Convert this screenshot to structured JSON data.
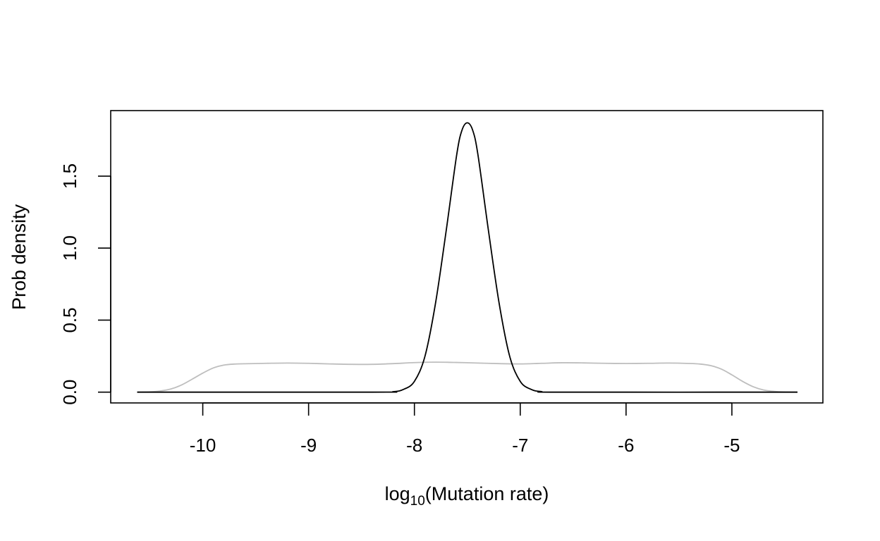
{
  "chart_data": {
    "type": "line",
    "title": "",
    "xlabel": {
      "prefix": "log",
      "subscript": "10",
      "suffix": "(Mutation rate)"
    },
    "ylabel": "Prob density",
    "xlim": [
      -10.87,
      -4.14
    ],
    "ylim": [
      -0.075,
      1.955
    ],
    "x_ticks": [
      -10,
      -9,
      -8,
      -7,
      -6,
      -5
    ],
    "x_tick_labels": [
      "-10",
      "-9",
      "-8",
      "-7",
      "-6",
      "-5"
    ],
    "y_ticks": [
      0.0,
      0.5,
      1.0,
      1.5
    ],
    "y_tick_labels": [
      "0.0",
      "0.5",
      "1.0",
      "1.5"
    ],
    "grid": false,
    "legend": "none",
    "series": [
      {
        "color": "#bebebe",
        "x": [
          -10.62,
          -10.5,
          -10.4,
          -10.3,
          -10.2,
          -10.1,
          -10.0,
          -9.9,
          -9.8,
          -9.7,
          -9.6,
          -9.4,
          -9.2,
          -9.0,
          -8.8,
          -8.6,
          -8.4,
          -8.2,
          -8.0,
          -7.8,
          -7.6,
          -7.4,
          -7.2,
          -7.0,
          -6.8,
          -6.6,
          -6.4,
          -6.2,
          -6.0,
          -5.8,
          -5.6,
          -5.4,
          -5.3,
          -5.2,
          -5.1,
          -5.0,
          -4.9,
          -4.8,
          -4.7,
          -4.6,
          -4.5,
          -4.38
        ],
        "y": [
          0.0,
          0.002,
          0.008,
          0.022,
          0.05,
          0.09,
          0.132,
          0.168,
          0.188,
          0.195,
          0.197,
          0.2,
          0.202,
          0.2,
          0.196,
          0.193,
          0.193,
          0.198,
          0.205,
          0.208,
          0.206,
          0.202,
          0.198,
          0.196,
          0.2,
          0.204,
          0.203,
          0.2,
          0.199,
          0.2,
          0.202,
          0.199,
          0.195,
          0.184,
          0.16,
          0.12,
          0.075,
          0.038,
          0.015,
          0.005,
          0.001,
          0.0
        ]
      },
      {
        "color": "#000000",
        "x": [
          -10.62,
          -8.4,
          -8.2,
          -8.1,
          -8.0,
          -7.9,
          -7.8,
          -7.7,
          -7.6,
          -7.55,
          -7.5,
          -7.45,
          -7.4,
          -7.3,
          -7.2,
          -7.1,
          -7.0,
          -6.9,
          -6.8,
          -6.6,
          -4.38
        ],
        "y": [
          0.0,
          0.0,
          0.003,
          0.02,
          0.075,
          0.25,
          0.62,
          1.12,
          1.65,
          1.82,
          1.87,
          1.82,
          1.65,
          1.12,
          0.62,
          0.25,
          0.075,
          0.02,
          0.004,
          0.0,
          0.0
        ]
      }
    ]
  }
}
